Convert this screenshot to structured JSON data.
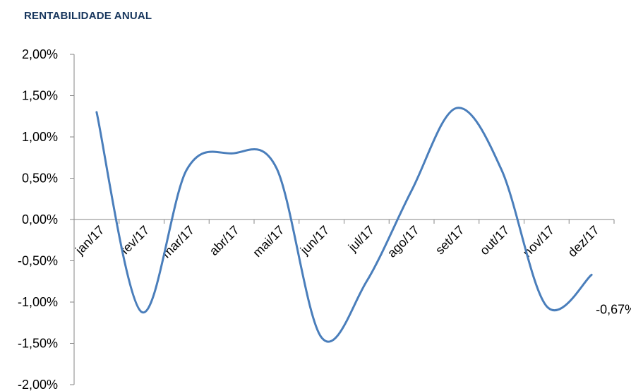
{
  "chart_data": {
    "type": "line",
    "title": "RENTABILIDADE ANUAL",
    "xlabel": "",
    "ylabel": "",
    "categories": [
      "jan/17",
      "fev/17",
      "mar/17",
      "abr/17",
      "mai/17",
      "jun/17",
      "jul/17",
      "ago/17",
      "set/17",
      "out/17",
      "nov/17",
      "dez/17"
    ],
    "series": [
      {
        "name": "",
        "values": [
          1.3,
          -1.12,
          0.6,
          0.8,
          0.62,
          -1.43,
          -0.75,
          0.35,
          1.35,
          0.6,
          -1.05,
          -0.67
        ]
      }
    ],
    "y_ticks": [
      "2,00%",
      "1,50%",
      "1,00%",
      "0,50%",
      "0,00%",
      "-0,50%",
      "-1,00%",
      "-1,50%",
      "-2,00%"
    ],
    "ylim": [
      -2.0,
      2.0
    ],
    "data_labels": [
      {
        "category": "dez/17",
        "text": "-0,67%"
      }
    ],
    "line_color": "#4a7ebb",
    "grid": false,
    "legend": "none"
  }
}
